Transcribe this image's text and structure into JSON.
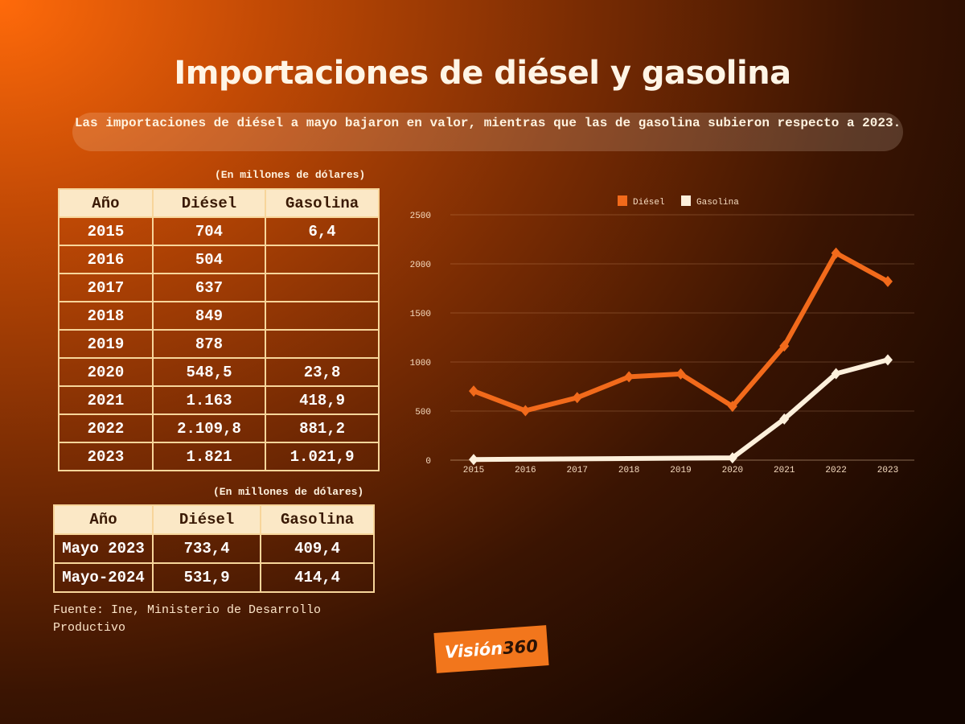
{
  "title": "Importaciones de diésel y gasolina",
  "subtitle": "Las importaciones de diésel a mayo bajaron en valor, mientras que las de gasolina subieron respecto a 2023.",
  "table_annual": {
    "unit": "(En millones de dólares)",
    "headers": [
      "Año",
      "Diésel",
      "Gasolina"
    ],
    "rows": [
      [
        "2015",
        "704",
        "6,4"
      ],
      [
        "2016",
        "504",
        ""
      ],
      [
        "2017",
        "637",
        ""
      ],
      [
        "2018",
        "849",
        ""
      ],
      [
        "2019",
        "878",
        ""
      ],
      [
        "2020",
        "548,5",
        "23,8"
      ],
      [
        "2021",
        "1.163",
        "418,9"
      ],
      [
        "2022",
        "2.109,8",
        "881,2"
      ],
      [
        "2023",
        "1.821",
        "1.021,9"
      ]
    ]
  },
  "table_may": {
    "unit": "(En millones de dólares)",
    "headers": [
      "Año",
      "Diésel",
      "Gasolina"
    ],
    "rows": [
      [
        "Mayo 2023",
        "733,4",
        "409,4"
      ],
      [
        "Mayo-2024",
        "531,9",
        "414,4"
      ]
    ]
  },
  "source": "Fuente: Ine, Ministerio de Desarrollo Productivo",
  "logo": {
    "text_a": "Visión",
    "text_b": "360",
    "bg": "#f2761c"
  },
  "chart_data": {
    "type": "line",
    "categories": [
      "2015",
      "2016",
      "2017",
      "2018",
      "2019",
      "2020",
      "2021",
      "2022",
      "2023"
    ],
    "series": [
      {
        "name": "Diésel",
        "color": "#f26a1b",
        "values": [
          704,
          504,
          637,
          849,
          878,
          548.5,
          1163,
          2109.8,
          1821
        ]
      },
      {
        "name": "Gasolina",
        "color": "#fdf0dc",
        "values": [
          6.4,
          null,
          null,
          null,
          null,
          23.8,
          418.9,
          881.2,
          1021.9
        ]
      }
    ],
    "yticks": [
      0,
      500,
      1000,
      1500,
      2000,
      2500
    ],
    "ylim": [
      0,
      2500
    ],
    "grid": true,
    "legend": "top-center"
  }
}
